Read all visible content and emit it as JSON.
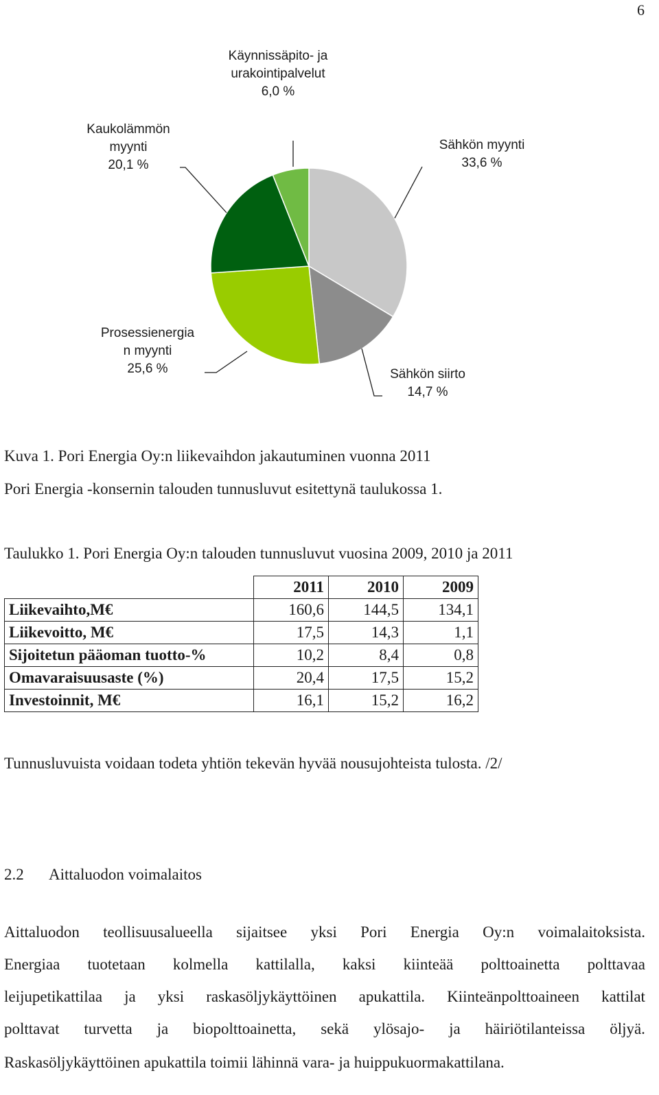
{
  "page_number": "6",
  "chart_data": {
    "type": "pie",
    "slices": [
      {
        "label_lines": [
          "Sähkön myynti",
          "33,6 %"
        ],
        "value": 33.6,
        "color": "#c8c8c8"
      },
      {
        "label_lines": [
          "Sähkön siirto",
          "14,7 %"
        ],
        "value": 14.7,
        "color": "#8c8c8c"
      },
      {
        "label_lines": [
          "Prosessienergia",
          "n myynti",
          "25,6 %"
        ],
        "value": 25.6,
        "color": "#99cc00"
      },
      {
        "label_lines": [
          "Kaukolämmön",
          "myynti",
          "20,1 %"
        ],
        "value": 20.1,
        "color": "#006010"
      },
      {
        "label_lines": [
          "Käynnissäpito- ja",
          "urakointipalvelut",
          "6,0 %"
        ],
        "value": 6.0,
        "color": "#70bb44"
      }
    ]
  },
  "figure_caption": "Kuva 1. Pori Energia Oy:n liikevaihdon jakautuminen vuonna 2011",
  "intro_text": "Pori Energia -konsernin talouden tunnusluvut esitettynä taulukossa 1.",
  "table_caption": "Taulukko 1. Pori Energia Oy:n talouden tunnusluvut vuosina 2009, 2010 ja 2011",
  "table": {
    "headers": [
      "2011",
      "2010",
      "2009"
    ],
    "rows": [
      {
        "label": "Liikevaihto,M€",
        "values": [
          "160,6",
          "144,5",
          "134,1"
        ]
      },
      {
        "label": "Liikevoitto, M€",
        "values": [
          "17,5",
          "14,3",
          "1,1"
        ]
      },
      {
        "label": "Sijoitetun pääoman tuotto-%",
        "values": [
          "10,2",
          "8,4",
          "0,8"
        ]
      },
      {
        "label": "Omavaraisuusaste (%)",
        "values": [
          "20,4",
          "17,5",
          "15,2"
        ]
      },
      {
        "label": "Investoinnit, M€",
        "values": [
          "16,1",
          "15,2",
          "16,2"
        ]
      }
    ]
  },
  "summary_text": "Tunnusluvuista voidaan todeta yhtiön tekevän hyvää nousujohteista tulosta. /2/",
  "section": {
    "number": "2.2",
    "title": "Aittaluodon voimalaitos"
  },
  "body_lines": [
    "Aittaluodon teollisuusalueella sijaitsee yksi Pori Energia Oy:n voimalaitoksista.",
    "Energiaa tuotetaan kolmella kattilalla, kaksi kiinteää polttoainetta polttavaa",
    "leijupetikattilaa ja yksi raskasöljykäyttöinen apukattila. Kiinteänpolttoaineen kattilat",
    "polttavat turvetta ja biopolttoainetta, sekä ylösajo- ja häiriötilanteissa öljyä.",
    "Raskasöljykäyttöinen apukattila toimii lähinnä vara- ja huippukuormakattilana."
  ]
}
